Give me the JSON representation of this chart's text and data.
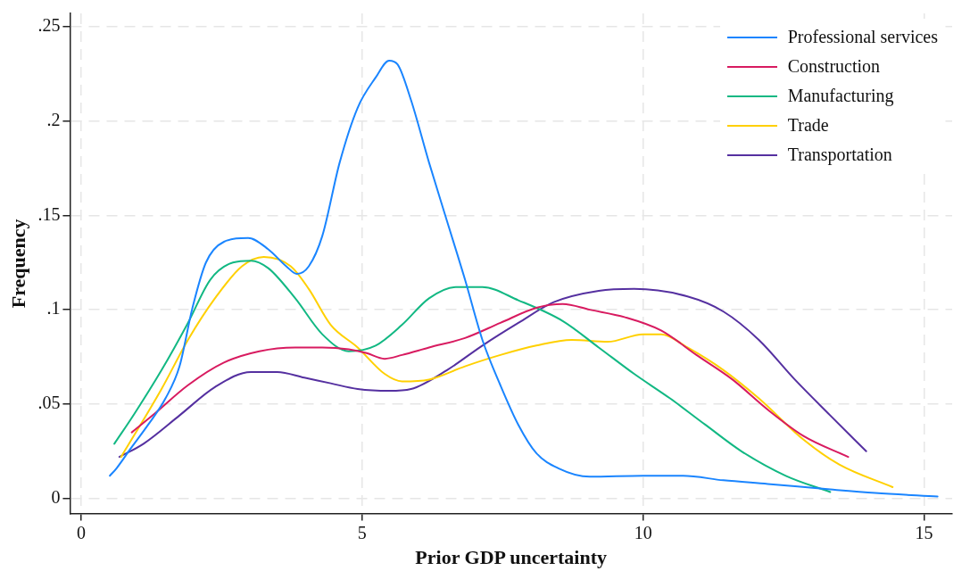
{
  "chart_data": {
    "type": "line",
    "xlabel": "Prior GDP uncertainty",
    "ylabel": "Frequency",
    "xlim": [
      -0.2,
      15.5
    ],
    "xticks": [
      0,
      5,
      10,
      15
    ],
    "ylim": [
      -0.008,
      0.257
    ],
    "yticks": [
      {
        "value": 0,
        "label": "0"
      },
      {
        "value": 0.05,
        "label": ".05"
      },
      {
        "value": 0.1,
        "label": ".1"
      },
      {
        "value": 0.15,
        "label": ".15"
      },
      {
        "value": 0.2,
        "label": ".2"
      },
      {
        "value": 0.25,
        "label": ".25"
      }
    ],
    "grid": true,
    "legend": "top right",
    "marker": "none",
    "line_style": "solid",
    "series": [
      {
        "name": "Professional services",
        "color": "#1a85ff",
        "x": [
          0.51,
          0.63,
          0.87,
          1.19,
          1.5,
          1.75,
          1.98,
          2.22,
          2.54,
          2.97,
          3.33,
          3.65,
          3.84,
          4.05,
          4.29,
          4.6,
          4.92,
          5.24,
          5.48,
          5.63,
          5.87,
          6.19,
          6.51,
          6.83,
          7.14,
          7.46,
          7.78,
          8.1,
          8.49,
          9.05,
          10,
          10.71,
          11.43,
          12.22,
          13.33,
          14.13,
          15.24
        ],
        "values": [
          0.012,
          0.016,
          0.026,
          0.039,
          0.053,
          0.07,
          0.101,
          0.125,
          0.136,
          0.138,
          0.132,
          0.123,
          0.119,
          0.123,
          0.139,
          0.178,
          0.207,
          0.223,
          0.232,
          0.23,
          0.211,
          0.178,
          0.147,
          0.116,
          0.084,
          0.06,
          0.039,
          0.024,
          0.016,
          0.0115,
          0.012,
          0.012,
          0.0096,
          0.0077,
          0.0048,
          0.0029,
          0.001
        ]
      },
      {
        "name": "Construction",
        "color": "#d81b60",
        "x": [
          0.9,
          1.27,
          1.9,
          2.54,
          3.17,
          3.81,
          4.29,
          4.76,
          5.08,
          5.4,
          5.71,
          6.19,
          6.83,
          7.46,
          8.1,
          8.57,
          9.05,
          9.68,
          10.32,
          10.95,
          11.59,
          12.22,
          12.86,
          13.65
        ],
        "values": [
          0.035,
          0.044,
          0.06,
          0.072,
          0.078,
          0.08,
          0.08,
          0.079,
          0.077,
          0.074,
          0.076,
          0.08,
          0.085,
          0.093,
          0.101,
          0.103,
          0.1,
          0.096,
          0.089,
          0.076,
          0.063,
          0.047,
          0.033,
          0.022
        ]
      },
      {
        "name": "Manufacturing",
        "color": "#12b883",
        "x": [
          0.59,
          0.95,
          1.43,
          1.9,
          2.3,
          2.7,
          3.02,
          3.33,
          3.81,
          4.29,
          4.76,
          5.24,
          5.71,
          6.19,
          6.67,
          7.14,
          7.78,
          8.57,
          9.21,
          9.84,
          10.48,
          11.11,
          11.75,
          12.54,
          13.33
        ],
        "values": [
          0.029,
          0.045,
          0.068,
          0.093,
          0.116,
          0.125,
          0.126,
          0.122,
          0.106,
          0.087,
          0.078,
          0.081,
          0.092,
          0.106,
          0.112,
          0.112,
          0.105,
          0.094,
          0.08,
          0.066,
          0.053,
          0.039,
          0.025,
          0.012,
          0.0034
        ]
      },
      {
        "name": "Trade",
        "color": "#ffd000",
        "x": [
          0.71,
          1.43,
          1.9,
          2.38,
          2.86,
          3.25,
          3.73,
          4.05,
          4.44,
          4.92,
          5.4,
          5.71,
          6.19,
          6.83,
          7.46,
          8.1,
          8.73,
          9.37,
          10,
          10.32,
          10.79,
          11.43,
          12.06,
          12.86,
          13.49,
          14.44
        ],
        "values": [
          0.022,
          0.058,
          0.084,
          0.106,
          0.123,
          0.128,
          0.123,
          0.111,
          0.092,
          0.08,
          0.066,
          0.062,
          0.063,
          0.07,
          0.076,
          0.081,
          0.084,
          0.083,
          0.087,
          0.087,
          0.08,
          0.068,
          0.053,
          0.031,
          0.018,
          0.006
        ]
      },
      {
        "name": "Transportation",
        "color": "#5530a0",
        "x": [
          0.68,
          1.11,
          1.75,
          2.38,
          3.02,
          3.49,
          3.97,
          4.44,
          4.92,
          5.48,
          5.87,
          6.51,
          7.14,
          7.78,
          8.41,
          9.21,
          9.84,
          10.79,
          11.43,
          12.06,
          12.7,
          13.33,
          13.97
        ],
        "values": [
          0.022,
          0.029,
          0.044,
          0.059,
          0.067,
          0.067,
          0.064,
          0.061,
          0.058,
          0.057,
          0.058,
          0.068,
          0.081,
          0.093,
          0.104,
          0.11,
          0.111,
          0.107,
          0.099,
          0.084,
          0.063,
          0.044,
          0.025
        ]
      }
    ]
  }
}
